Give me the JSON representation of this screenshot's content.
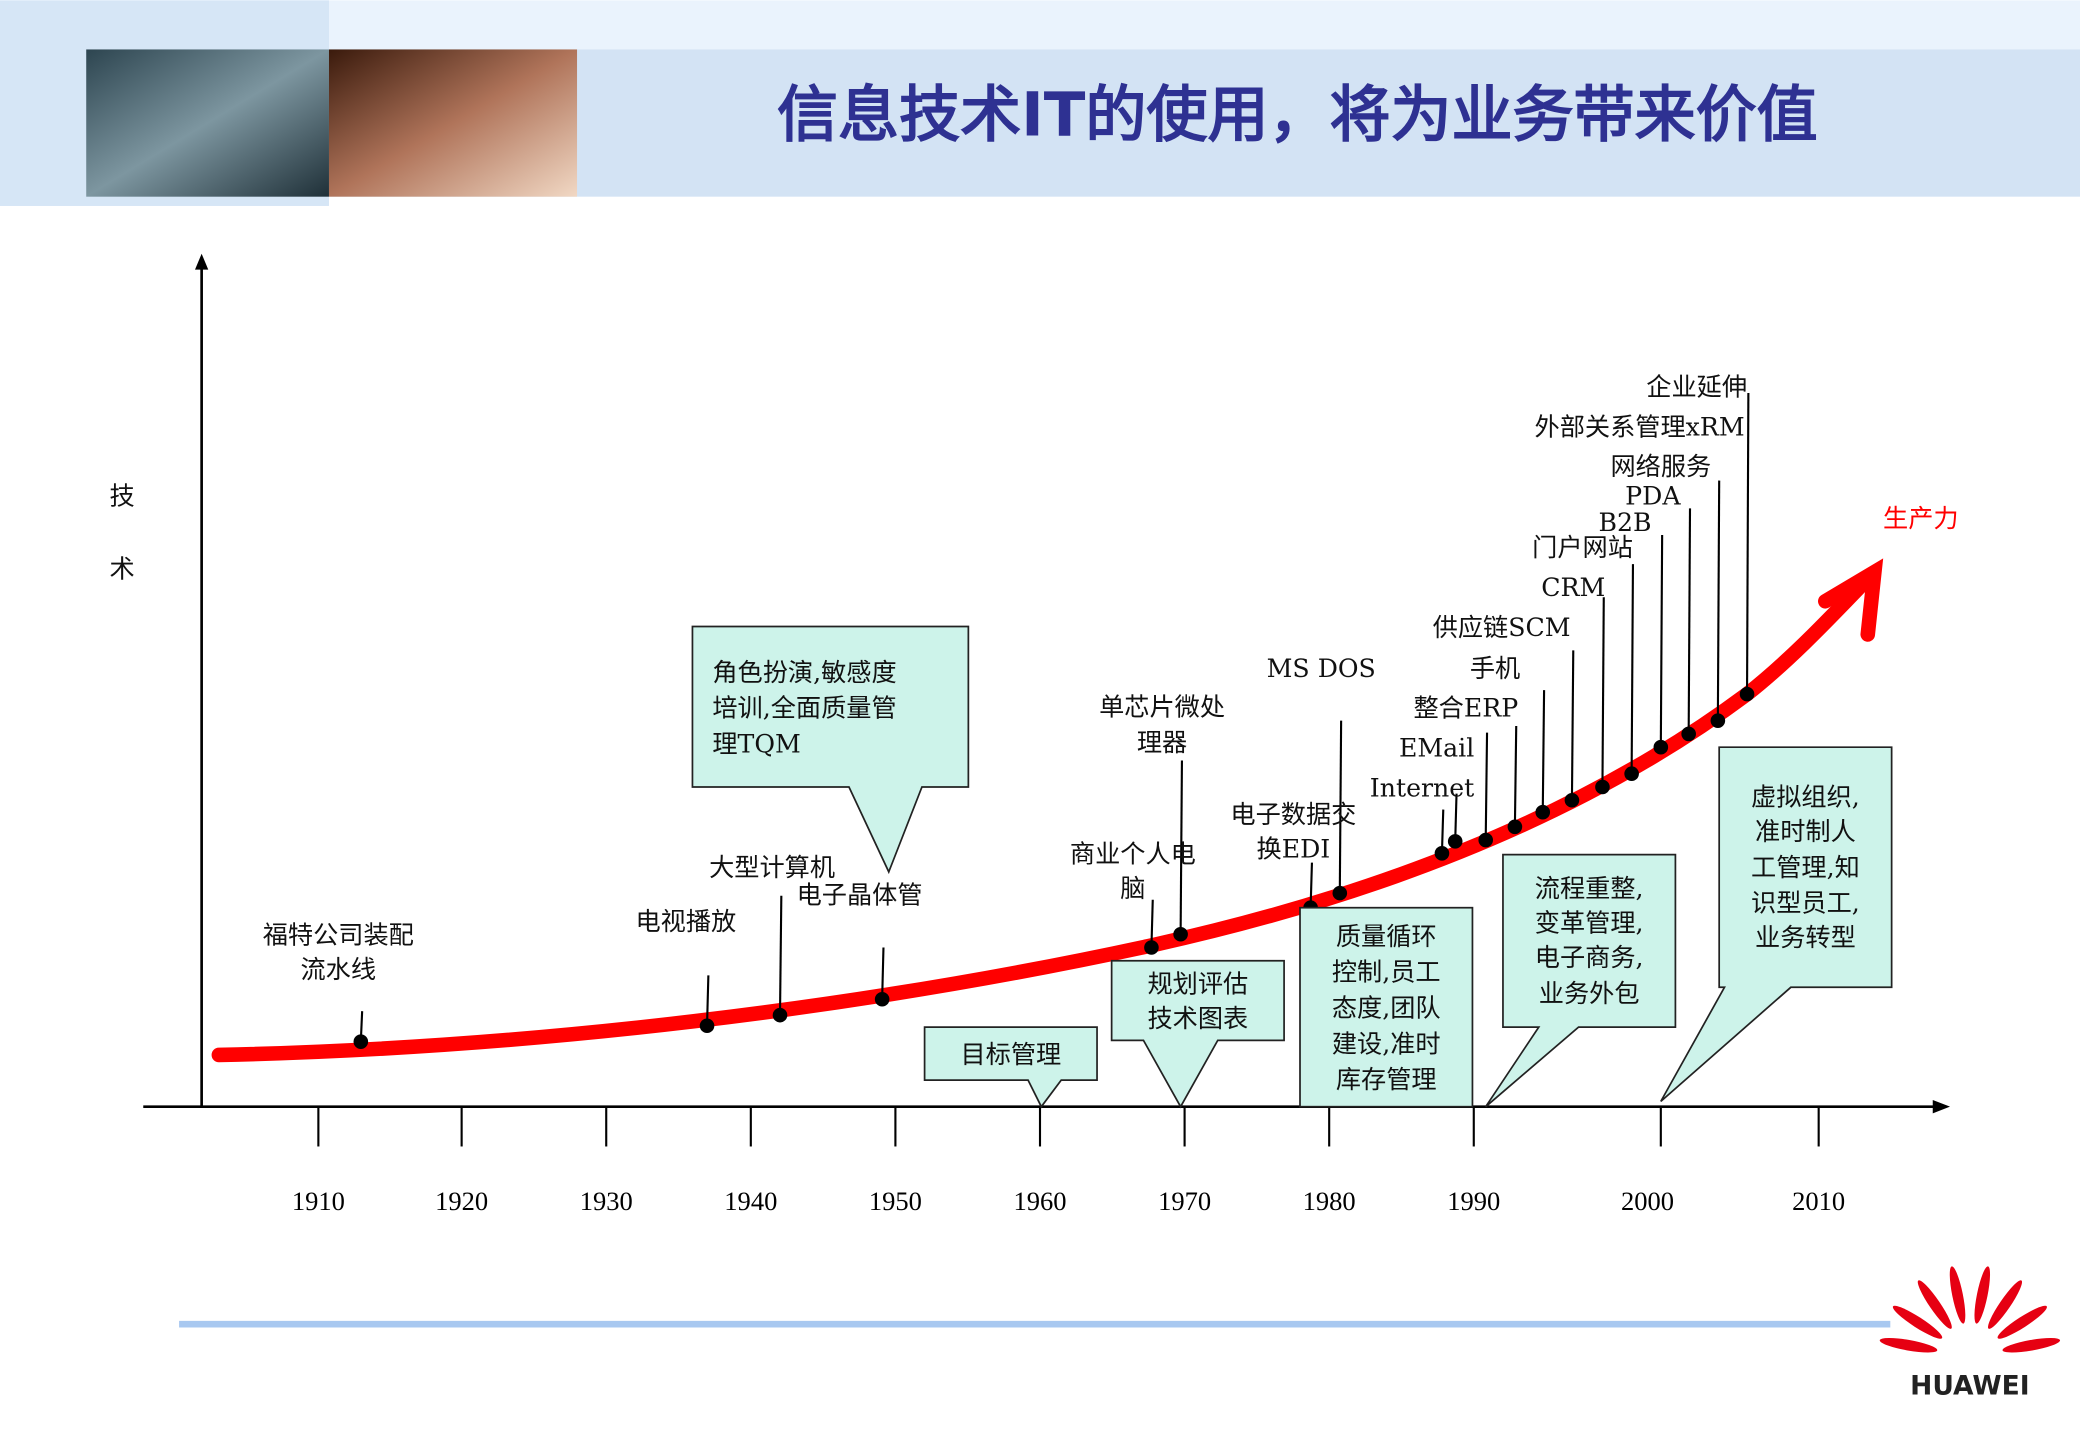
{
  "title": "信息技术IT的使用，将为业务带来价值",
  "y_axis_label": [
    "技",
    "术"
  ],
  "curve_label": "生产力",
  "years": [
    "1910",
    "1920",
    "1930",
    "1940",
    "1950",
    "1960",
    "1970",
    "1980",
    "1990",
    "2000",
    "2010"
  ],
  "technologies": [
    "福特公司装配",
    "流水线",
    "电视播放",
    "大型计算机",
    "电子晶体管",
    "商业个人电",
    "脑",
    "单芯片微处",
    "理器",
    "电子数据交",
    "换EDI",
    "MS DOS",
    "Internet",
    "EMail",
    "整合ERP",
    "手机",
    "供应链SCM",
    "CRM",
    "门户网站",
    "B2B",
    "PDA",
    "网络服务",
    "外部关系管理xRM",
    "企业延伸"
  ],
  "callouts": [
    [
      "角色扮演,敏感度",
      "培训,全面质量管",
      "理TQM"
    ],
    [
      "目标管理"
    ],
    [
      "规划评估",
      "技术图表"
    ],
    [
      "质量循环",
      "控制,员工",
      "态度,团队",
      "建设,准时",
      "库存管理"
    ],
    [
      "流程重整,",
      "变革管理,",
      "电子商务,",
      "业务外包"
    ],
    [
      "虚拟组织,",
      "准时制人",
      "工管理,知",
      "识型员工,",
      "业务转型"
    ]
  ],
  "logo": "HUAWEI",
  "colors": {
    "title": "#2e3192",
    "curve": "#ff0000",
    "box": "#cdf3ea"
  }
}
